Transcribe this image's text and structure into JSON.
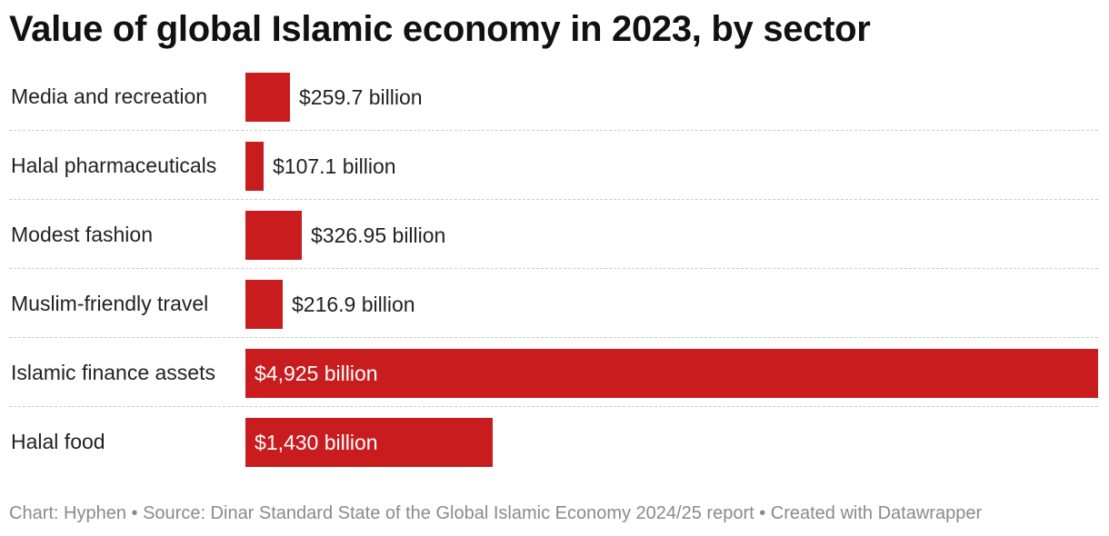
{
  "chart_data": {
    "type": "bar",
    "orientation": "horizontal",
    "title": "Value of global Islamic economy in 2023, by sector",
    "categories": [
      "Media and recreation",
      "Halal pharmaceuticals",
      "Modest fashion",
      "Muslim-friendly travel",
      "Islamic finance assets",
      "Halal food"
    ],
    "values": [
      259.7,
      107.1,
      326.95,
      216.9,
      4925,
      1430
    ],
    "value_labels": [
      "$259.7 billion",
      "$107.1 billion",
      "$326.95 billion",
      "$216.9 billion",
      "$4,925 billion",
      "$1,430 billion"
    ],
    "xlim": [
      0,
      4925
    ],
    "bar_color": "#c91c1f",
    "grid": false,
    "legend": "none"
  },
  "footer": {
    "text": "Chart: Hyphen • Source: Dinar Standard State of the Global Islamic Economy 2024/25 report • Created with Datawrapper"
  }
}
